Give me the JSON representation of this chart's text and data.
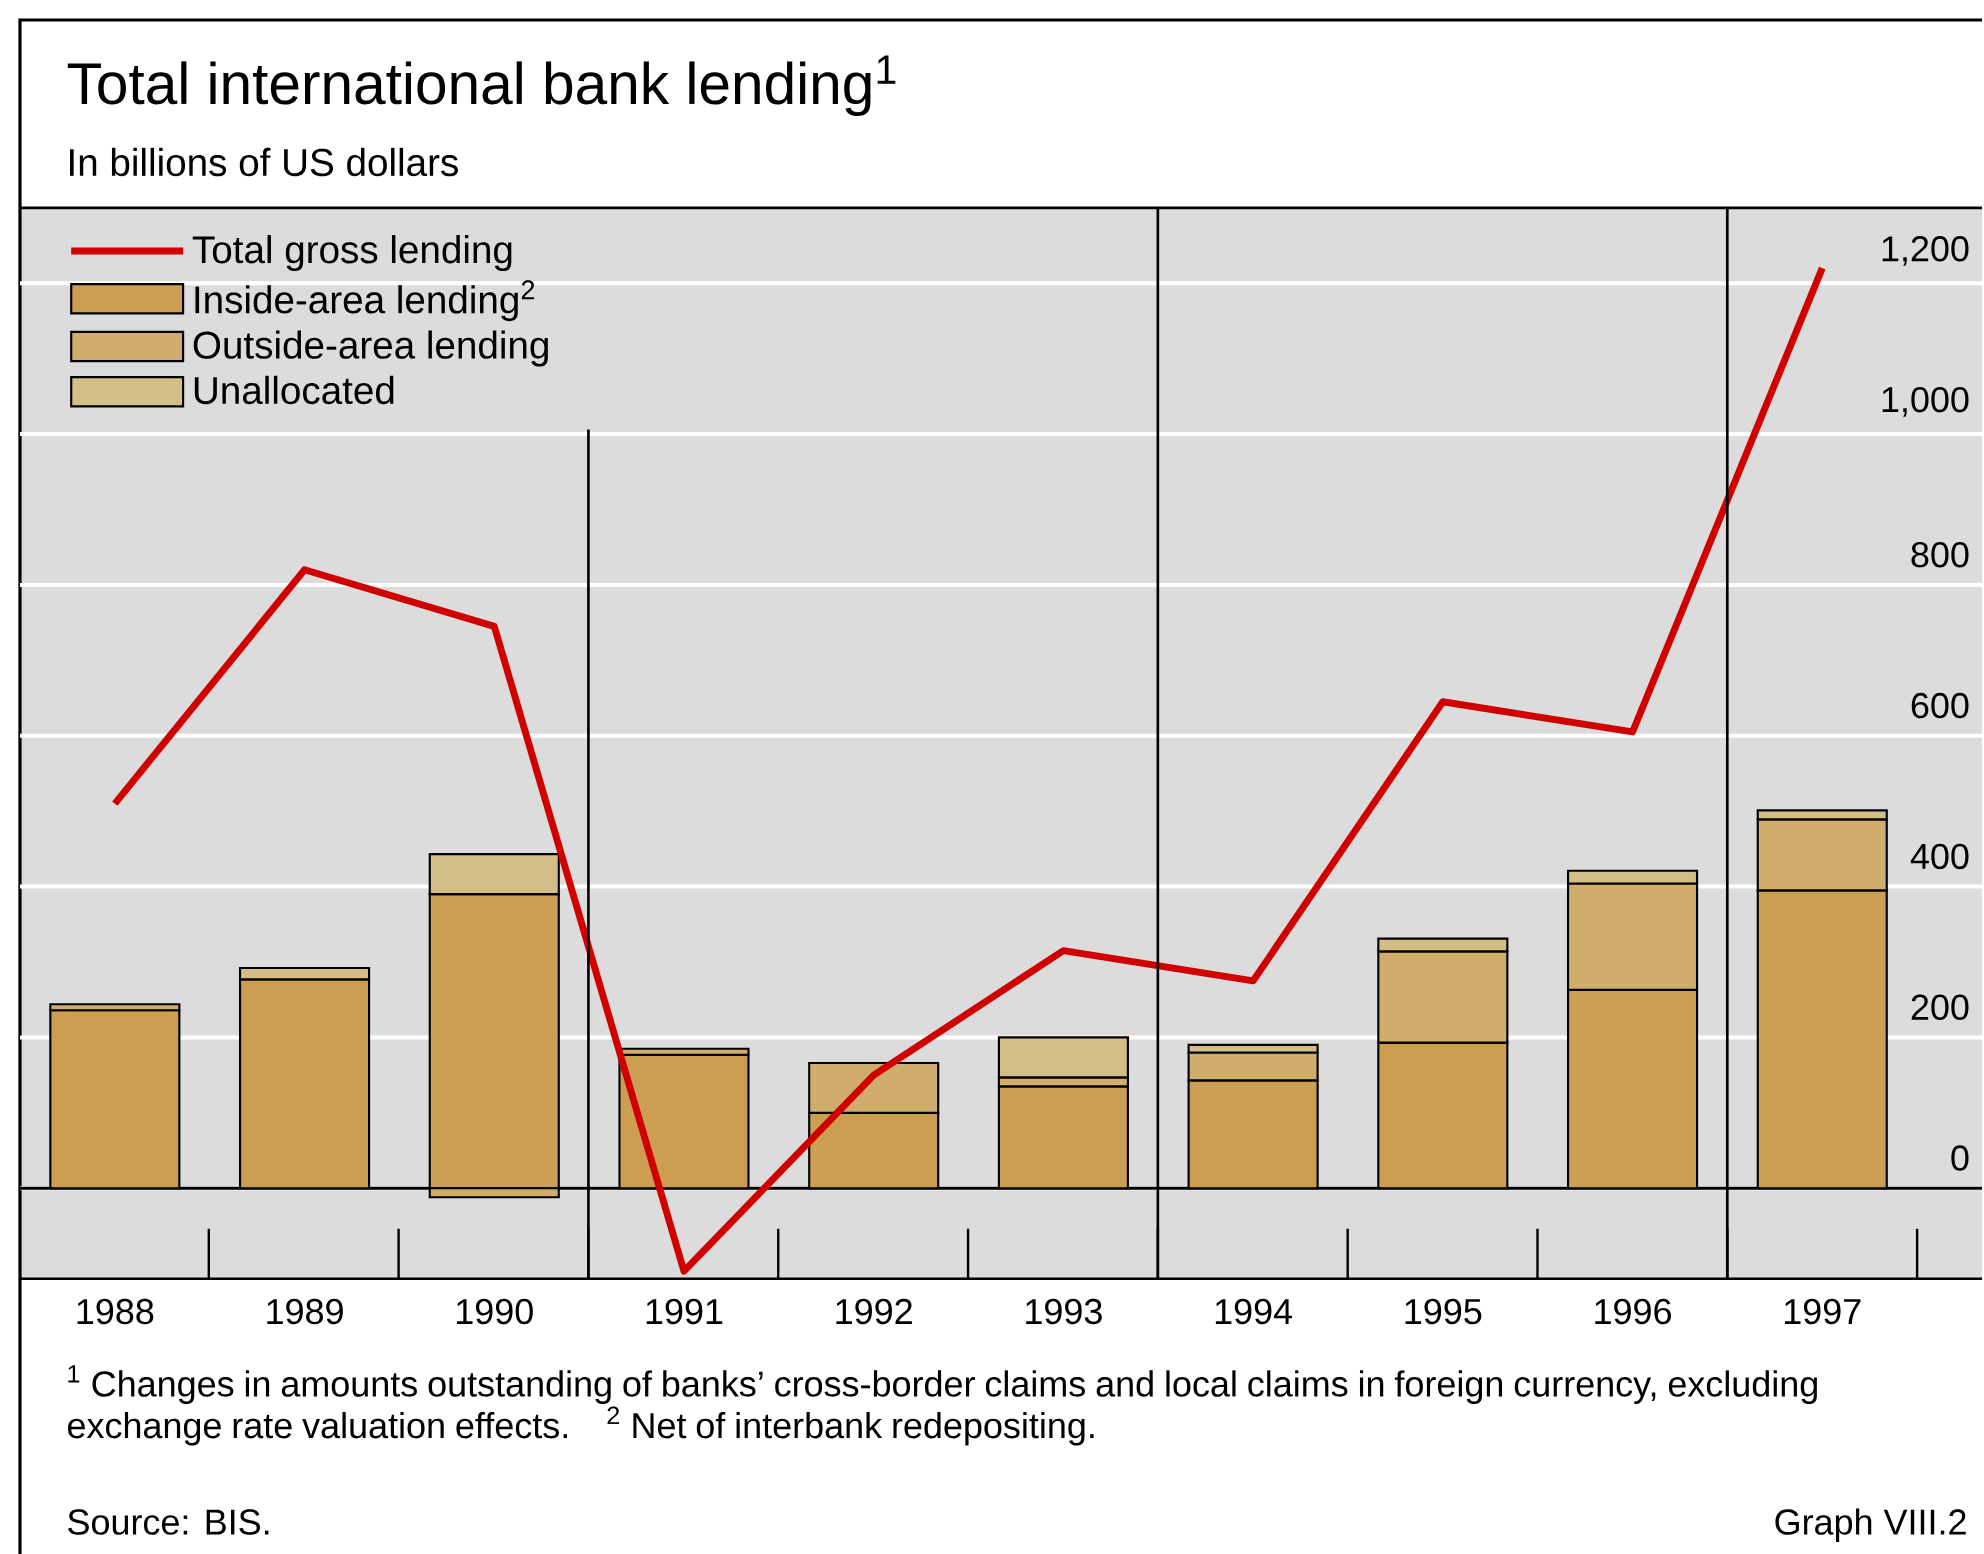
{
  "chart_data": {
    "type": "bar",
    "title": "Total international bank lending$^{1}$",
    "subtitle": "In billions of US dollars",
    "categories": [
      "1988",
      "1989",
      "1990",
      "1991",
      "1992",
      "1993",
      "1994",
      "1995",
      "1996",
      "1997"
    ],
    "stacked": true,
    "series": [
      {
        "name": "Total gross lending",
        "type": "line",
        "color": "#d10000",
        "values": [
          510,
          820,
          745,
          -110,
          150,
          315,
          275,
          645,
          605,
          1220
        ]
      },
      {
        "name": "Inside-area lending$^{2}$",
        "color": "#cc9e52",
        "values": [
          236,
          277,
          390,
          177,
          100,
          135,
          143,
          193,
          263,
          395
        ]
      },
      {
        "name": "Outside-area lending",
        "color": "#d0ad6c",
        "values": [
          8,
          null,
          -12,
          8,
          66,
          12,
          37,
          121,
          141,
          94
        ]
      },
      {
        "name": "Unallocated",
        "color": "#d2be86",
        "values": [
          null,
          15,
          53,
          null,
          null,
          53,
          10,
          17,
          17,
          12
        ]
      }
    ],
    "ylim": [
      -120,
      1300
    ],
    "yticks": [
      0,
      200,
      400,
      600,
      800,
      {
        "value": 1000,
        "label": "1,000"
      },
      {
        "value": 1200,
        "label": "1,200"
      }
    ],
    "grid": "y",
    "legend": "top left",
    "annotations": [
      "$^{1}$ Changes in amounts outstanding of banks’ cross-border claims and local claims in foreign currency, excluding exchange rate valuation effects.",
      "$^{2}$ Net of interbank redepositing.",
      "Source: BIS.",
      "Graph VIII.2"
    ]
  }
}
